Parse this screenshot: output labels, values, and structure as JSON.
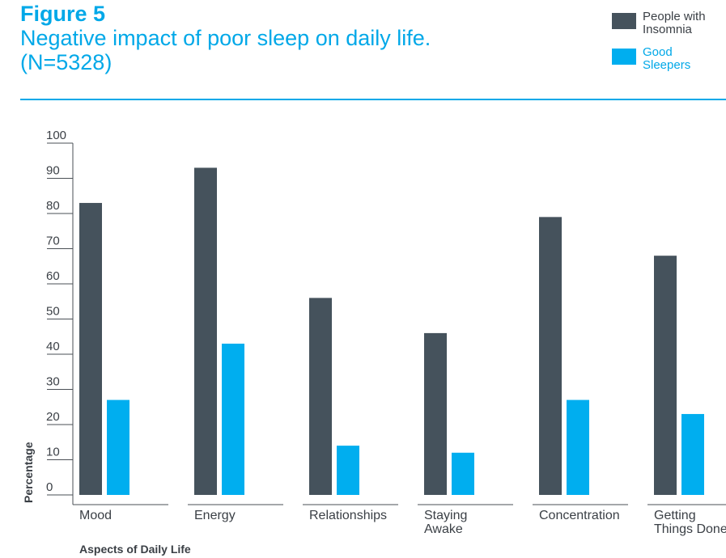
{
  "header": {
    "figure_label": "Figure 5",
    "title": "Negative impact of poor sleep on daily life. (N=5328)"
  },
  "legend": {
    "items": [
      {
        "label": "People with Insomnia",
        "color": "#45525c"
      },
      {
        "label": "Good Sleepers",
        "color": "#00aeef"
      }
    ]
  },
  "colors": {
    "accent": "#00a8e8",
    "axis": "#4a4f55",
    "text": "#3a3f45"
  },
  "chart_data": {
    "type": "bar",
    "xlabel": "Aspects of Daily Life",
    "ylabel": "Percentage",
    "ylim": [
      0,
      100
    ],
    "yticks": [
      0,
      10,
      20,
      30,
      40,
      50,
      60,
      70,
      80,
      90,
      100
    ],
    "grid": false,
    "legend_position": "top-right",
    "categories": [
      [
        "Mood"
      ],
      [
        "Energy"
      ],
      [
        "Relationships"
      ],
      [
        "Staying",
        "Awake"
      ],
      [
        "Concentration"
      ],
      [
        "Getting",
        "Things Done"
      ]
    ],
    "series": [
      {
        "name": "People with Insomnia",
        "color": "#45525c",
        "values": [
          83,
          93,
          56,
          46,
          79,
          68
        ]
      },
      {
        "name": "Good Sleepers",
        "color": "#00aeef",
        "values": [
          27,
          43,
          14,
          12,
          27,
          23
        ]
      }
    ]
  }
}
